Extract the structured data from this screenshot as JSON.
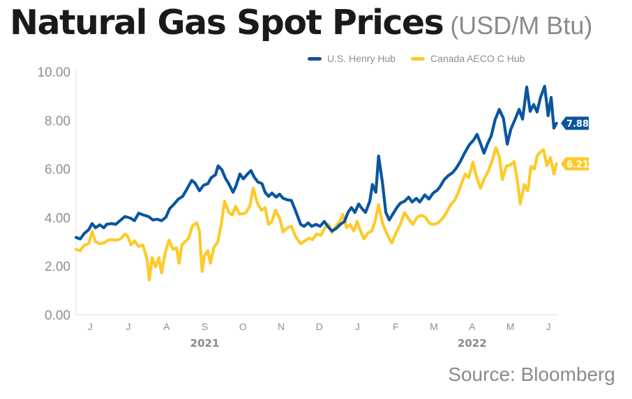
{
  "title": "Natural Gas Spot Prices",
  "unit": "(USD/M Btu)",
  "source": "Source: Bloomberg",
  "colors": {
    "henry": "#0a55a0",
    "aeco": "#fdca2a",
    "axis": "#dddddd",
    "tick": "#8d8d95"
  },
  "chart_data": {
    "type": "line",
    "title": "Natural Gas Spot Prices",
    "subtitle": "(USD/M Btu)",
    "xlabel": "",
    "ylabel": "",
    "x_units": "months since June 1, 2021",
    "xlim": [
      0.13,
      12.75
    ],
    "ylim": [
      0,
      10
    ],
    "yticks": [
      0,
      2,
      4,
      6,
      8,
      10
    ],
    "ytick_labels": [
      "0.00",
      "2.00",
      "4.00",
      "6.00",
      "8.00",
      "10.00"
    ],
    "xticks": [
      {
        "label": "J",
        "at": 0.5
      },
      {
        "label": "J",
        "at": 1.5
      },
      {
        "label": "A",
        "at": 2.5
      },
      {
        "label": "S",
        "at": 3.5
      },
      {
        "label": "O",
        "at": 4.5
      },
      {
        "label": "N",
        "at": 5.5
      },
      {
        "label": "D",
        "at": 6.5
      },
      {
        "label": "J",
        "at": 7.5
      },
      {
        "label": "F",
        "at": 8.5
      },
      {
        "label": "M",
        "at": 9.5
      },
      {
        "label": "A",
        "at": 10.5
      },
      {
        "label": "M",
        "at": 11.5
      },
      {
        "label": "J",
        "at": 12.5
      }
    ],
    "year_labels": [
      {
        "label": "2021",
        "at": 3.5
      },
      {
        "label": "2022",
        "at": 10.5
      }
    ],
    "grid": false,
    "legend_position": "top-right",
    "series": [
      {
        "name": "U.S. Henry Hub",
        "color": "#0a55a0",
        "end_label": "7.88",
        "points": [
          [
            0.13,
            3.18
          ],
          [
            0.24,
            3.12
          ],
          [
            0.35,
            3.35
          ],
          [
            0.46,
            3.5
          ],
          [
            0.55,
            3.75
          ],
          [
            0.64,
            3.58
          ],
          [
            0.75,
            3.7
          ],
          [
            0.86,
            3.58
          ],
          [
            0.93,
            3.72
          ],
          [
            1.06,
            3.75
          ],
          [
            1.17,
            3.72
          ],
          [
            1.28,
            3.87
          ],
          [
            1.41,
            4.04
          ],
          [
            1.55,
            3.98
          ],
          [
            1.66,
            3.87
          ],
          [
            1.77,
            4.18
          ],
          [
            1.9,
            4.1
          ],
          [
            2.03,
            4.04
          ],
          [
            2.14,
            3.9
          ],
          [
            2.25,
            3.93
          ],
          [
            2.37,
            3.87
          ],
          [
            2.48,
            4.01
          ],
          [
            2.58,
            4.36
          ],
          [
            2.7,
            4.56
          ],
          [
            2.81,
            4.76
          ],
          [
            2.92,
            4.87
          ],
          [
            3.03,
            5.16
          ],
          [
            3.16,
            5.53
          ],
          [
            3.25,
            5.41
          ],
          [
            3.36,
            5.1
          ],
          [
            3.47,
            5.33
          ],
          [
            3.58,
            5.39
          ],
          [
            3.67,
            5.64
          ],
          [
            3.78,
            5.76
          ],
          [
            3.85,
            6.13
          ],
          [
            3.95,
            5.96
          ],
          [
            4.04,
            5.62
          ],
          [
            4.13,
            5.39
          ],
          [
            4.24,
            5.04
          ],
          [
            4.31,
            5.27
          ],
          [
            4.42,
            5.79
          ],
          [
            4.51,
            5.59
          ],
          [
            4.62,
            5.79
          ],
          [
            4.71,
            5.93
          ],
          [
            4.79,
            5.67
          ],
          [
            4.89,
            5.47
          ],
          [
            5.0,
            5.39
          ],
          [
            5.08,
            5.04
          ],
          [
            5.17,
            4.87
          ],
          [
            5.26,
            5.01
          ],
          [
            5.37,
            4.84
          ],
          [
            5.46,
            4.96
          ],
          [
            5.55,
            4.79
          ],
          [
            5.66,
            4.73
          ],
          [
            5.77,
            4.7
          ],
          [
            5.88,
            4.27
          ],
          [
            6.01,
            3.72
          ],
          [
            6.1,
            3.64
          ],
          [
            6.21,
            3.78
          ],
          [
            6.3,
            3.64
          ],
          [
            6.41,
            3.72
          ],
          [
            6.52,
            3.64
          ],
          [
            6.63,
            3.84
          ],
          [
            6.72,
            3.64
          ],
          [
            6.83,
            3.44
          ],
          [
            6.94,
            3.55
          ],
          [
            7.05,
            3.72
          ],
          [
            7.16,
            3.84
          ],
          [
            7.25,
            4.21
          ],
          [
            7.34,
            4.41
          ],
          [
            7.43,
            4.21
          ],
          [
            7.53,
            4.56
          ],
          [
            7.62,
            4.36
          ],
          [
            7.71,
            4.21
          ],
          [
            7.82,
            4.67
          ],
          [
            7.89,
            5.36
          ],
          [
            7.98,
            5.04
          ],
          [
            8.05,
            6.53
          ],
          [
            8.15,
            5.47
          ],
          [
            8.24,
            4.21
          ],
          [
            8.33,
            3.9
          ],
          [
            8.42,
            4.13
          ],
          [
            8.53,
            4.41
          ],
          [
            8.62,
            4.59
          ],
          [
            8.73,
            4.67
          ],
          [
            8.84,
            4.84
          ],
          [
            8.93,
            4.64
          ],
          [
            9.04,
            4.79
          ],
          [
            9.13,
            4.64
          ],
          [
            9.26,
            4.93
          ],
          [
            9.37,
            4.76
          ],
          [
            9.48,
            5.01
          ],
          [
            9.59,
            5.13
          ],
          [
            9.66,
            5.27
          ],
          [
            9.77,
            5.56
          ],
          [
            9.88,
            5.73
          ],
          [
            9.99,
            5.85
          ],
          [
            10.08,
            6.02
          ],
          [
            10.19,
            6.3
          ],
          [
            10.3,
            6.65
          ],
          [
            10.43,
            7.0
          ],
          [
            10.54,
            7.19
          ],
          [
            10.63,
            7.42
          ],
          [
            10.72,
            7.05
          ],
          [
            10.81,
            6.65
          ],
          [
            10.9,
            7.02
          ],
          [
            11.0,
            7.36
          ],
          [
            11.1,
            8.02
          ],
          [
            11.21,
            8.45
          ],
          [
            11.32,
            8.08
          ],
          [
            11.42,
            7.02
          ],
          [
            11.51,
            7.62
          ],
          [
            11.62,
            8.02
          ],
          [
            11.73,
            8.45
          ],
          [
            11.82,
            8.05
          ],
          [
            11.93,
            9.37
          ],
          [
            12.02,
            8.37
          ],
          [
            12.11,
            8.65
          ],
          [
            12.2,
            8.34
          ],
          [
            12.29,
            8.94
          ],
          [
            12.4,
            9.4
          ],
          [
            12.49,
            8.19
          ],
          [
            12.57,
            8.94
          ],
          [
            12.64,
            7.68
          ],
          [
            12.71,
            7.88
          ]
        ]
      },
      {
        "name": "Canada AECO C Hub",
        "color": "#fdca2a",
        "end_label": "6.21",
        "points": [
          [
            0.13,
            2.69
          ],
          [
            0.24,
            2.64
          ],
          [
            0.35,
            2.87
          ],
          [
            0.46,
            2.92
          ],
          [
            0.55,
            3.41
          ],
          [
            0.64,
            3.01
          ],
          [
            0.75,
            2.92
          ],
          [
            0.86,
            2.95
          ],
          [
            0.97,
            3.07
          ],
          [
            1.08,
            3.09
          ],
          [
            1.19,
            3.07
          ],
          [
            1.3,
            3.12
          ],
          [
            1.41,
            3.32
          ],
          [
            1.48,
            3.24
          ],
          [
            1.57,
            2.87
          ],
          [
            1.66,
            3.04
          ],
          [
            1.77,
            2.81
          ],
          [
            1.88,
            2.87
          ],
          [
            1.99,
            2.29
          ],
          [
            2.05,
            1.43
          ],
          [
            2.12,
            2.35
          ],
          [
            2.21,
            1.98
          ],
          [
            2.3,
            2.35
          ],
          [
            2.37,
            1.72
          ],
          [
            2.47,
            2.58
          ],
          [
            2.56,
            3.07
          ],
          [
            2.67,
            2.69
          ],
          [
            2.76,
            2.75
          ],
          [
            2.83,
            2.12
          ],
          [
            2.9,
            2.87
          ],
          [
            2.98,
            3.01
          ],
          [
            3.07,
            3.12
          ],
          [
            3.18,
            3.67
          ],
          [
            3.29,
            3.78
          ],
          [
            3.36,
            3.44
          ],
          [
            3.43,
            1.78
          ],
          [
            3.49,
            2.41
          ],
          [
            3.58,
            2.64
          ],
          [
            3.65,
            2.12
          ],
          [
            3.74,
            2.78
          ],
          [
            3.84,
            2.98
          ],
          [
            3.93,
            3.72
          ],
          [
            4.02,
            4.67
          ],
          [
            4.13,
            4.21
          ],
          [
            4.22,
            4.1
          ],
          [
            4.31,
            4.47
          ],
          [
            4.4,
            4.15
          ],
          [
            4.51,
            4.15
          ],
          [
            4.58,
            4.21
          ],
          [
            4.68,
            4.47
          ],
          [
            4.77,
            5.21
          ],
          [
            4.88,
            4.58
          ],
          [
            4.99,
            4.3
          ],
          [
            5.08,
            4.41
          ],
          [
            5.17,
            3.72
          ],
          [
            5.26,
            3.84
          ],
          [
            5.35,
            4.3
          ],
          [
            5.46,
            3.98
          ],
          [
            5.55,
            3.41
          ],
          [
            5.66,
            3.58
          ],
          [
            5.77,
            3.64
          ],
          [
            5.88,
            3.21
          ],
          [
            6.01,
            2.92
          ],
          [
            6.12,
            3.04
          ],
          [
            6.23,
            3.15
          ],
          [
            6.32,
            3.09
          ],
          [
            6.43,
            3.32
          ],
          [
            6.54,
            3.27
          ],
          [
            6.65,
            3.58
          ],
          [
            6.74,
            3.72
          ],
          [
            6.83,
            3.38
          ],
          [
            6.92,
            3.61
          ],
          [
            7.03,
            3.84
          ],
          [
            7.12,
            4.13
          ],
          [
            7.21,
            3.58
          ],
          [
            7.31,
            3.72
          ],
          [
            7.4,
            3.44
          ],
          [
            7.49,
            3.84
          ],
          [
            7.58,
            3.44
          ],
          [
            7.67,
            3.12
          ],
          [
            7.78,
            3.38
          ],
          [
            7.87,
            3.44
          ],
          [
            7.96,
            3.84
          ],
          [
            8.05,
            4.53
          ],
          [
            8.15,
            3.78
          ],
          [
            8.24,
            3.44
          ],
          [
            8.33,
            3.12
          ],
          [
            8.4,
            2.95
          ],
          [
            8.51,
            3.38
          ],
          [
            8.62,
            3.72
          ],
          [
            8.73,
            4.21
          ],
          [
            8.84,
            3.93
          ],
          [
            8.95,
            3.72
          ],
          [
            9.06,
            4.01
          ],
          [
            9.17,
            4.1
          ],
          [
            9.28,
            4.01
          ],
          [
            9.39,
            3.75
          ],
          [
            9.5,
            3.72
          ],
          [
            9.61,
            3.78
          ],
          [
            9.72,
            3.95
          ],
          [
            9.83,
            4.21
          ],
          [
            9.94,
            4.53
          ],
          [
            10.05,
            4.73
          ],
          [
            10.14,
            5.04
          ],
          [
            10.23,
            5.44
          ],
          [
            10.32,
            5.79
          ],
          [
            10.41,
            5.64
          ],
          [
            10.52,
            6.28
          ],
          [
            10.61,
            5.7
          ],
          [
            10.72,
            5.21
          ],
          [
            10.83,
            5.64
          ],
          [
            10.92,
            5.9
          ],
          [
            11.03,
            6.36
          ],
          [
            11.12,
            6.88
          ],
          [
            11.21,
            6.51
          ],
          [
            11.29,
            5.56
          ],
          [
            11.4,
            6.13
          ],
          [
            11.49,
            6.15
          ],
          [
            11.6,
            6.3
          ],
          [
            11.69,
            5.44
          ],
          [
            11.76,
            4.56
          ],
          [
            11.87,
            5.36
          ],
          [
            11.96,
            5.1
          ],
          [
            12.04,
            6.1
          ],
          [
            12.13,
            5.99
          ],
          [
            12.2,
            6.53
          ],
          [
            12.27,
            6.68
          ],
          [
            12.37,
            6.79
          ],
          [
            12.46,
            6.13
          ],
          [
            12.55,
            6.47
          ],
          [
            12.64,
            5.79
          ],
          [
            12.71,
            6.21
          ]
        ]
      }
    ]
  }
}
